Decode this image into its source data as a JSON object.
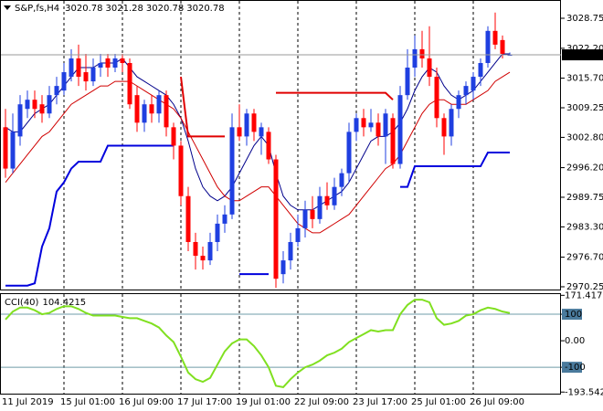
{
  "chart_data": {
    "type": "candlestick",
    "symbol": "S&P,fs,H4",
    "categories": [
      "11 Jul 2019",
      null,
      null,
      null,
      null,
      null,
      null,
      null,
      "15 Jul 01:00",
      null,
      null,
      null,
      null,
      null,
      null,
      null,
      "16 Jul 09:00",
      null,
      null,
      null,
      null,
      null,
      null,
      null,
      "17 Jul 17:00",
      null,
      null,
      null,
      null,
      null,
      null,
      null,
      "19 Jul 01:00",
      null,
      null,
      null,
      null,
      null,
      null,
      null,
      "22 Jul 09:00",
      null,
      null,
      null,
      null,
      null,
      null,
      null,
      "23 Jul 17:00",
      null,
      null,
      null,
      null,
      null,
      null,
      null,
      "25 Jul 01:00",
      null,
      null,
      null,
      null,
      null,
      null,
      null,
      "26 Jul 09:00",
      null,
      null,
      null,
      null,
      null
    ],
    "open": [
      3005,
      2996,
      3003,
      3009,
      3011,
      3010,
      3008,
      3012,
      3013,
      3016,
      3020,
      3017,
      3015,
      3018,
      3020,
      3018,
      3020,
      3019,
      3012,
      3006,
      3010,
      3008,
      3012,
      3005,
      3001,
      2990,
      2980,
      2977,
      2976,
      2980,
      2984,
      2986,
      3005,
      3003,
      3008,
      3003,
      3004,
      2998,
      2973,
      2976,
      2980,
      2983,
      2987,
      2985,
      2990,
      2988,
      2992,
      2995,
      3004,
      3007,
      3005,
      3006,
      3003,
      3007,
      2997,
      3012,
      3018,
      3022,
      3020,
      3016,
      3007,
      3003,
      3009,
      3012,
      3013,
      3016,
      3019,
      3026,
      3024,
      3020.78
    ],
    "high": [
      3009,
      3008,
      3012,
      3013,
      3013,
      3012,
      3014,
      3016,
      3019,
      3022,
      3023,
      3021,
      3020,
      3021,
      3021,
      3021,
      3021,
      3020,
      3014,
      3011,
      3012,
      3013,
      3013,
      3006,
      3002,
      2992,
      2982,
      2979,
      2982,
      2986,
      2988,
      3008,
      3010,
      3009,
      3009,
      3006,
      3005,
      2999,
      2978,
      2982,
      2986,
      2989,
      2990,
      2992,
      2993,
      2994,
      2996,
      3006,
      3008,
      3009,
      3009,
      3008,
      3009,
      3008,
      3014,
      3022,
      3025,
      3026,
      3027,
      3018,
      3008,
      3010,
      3013,
      3015,
      3017,
      3020,
      3027,
      3030,
      3025,
      3021.28
    ],
    "low": [
      2994,
      2995,
      3001,
      3007,
      3007,
      3006,
      3007,
      3010,
      3012,
      3015,
      3014,
      3013,
      3014,
      3016,
      3016,
      3017,
      3017,
      3009,
      3004,
      3004,
      3006,
      3006,
      3003,
      2998,
      2988,
      2978,
      2974,
      2974,
      2975,
      2978,
      2982,
      2985,
      3002,
      3001,
      3002,
      2999,
      2997,
      2970,
      2971,
      2974,
      2979,
      2981,
      2983,
      2984,
      2987,
      2987,
      2990,
      2993,
      3002,
      3003,
      3004,
      3001,
      2997,
      2996,
      2996,
      3011,
      3016,
      3018,
      3014,
      3005,
      2999,
      3001,
      3007,
      3010,
      3011,
      3014,
      3018,
      3022,
      3020,
      3020.78
    ],
    "close": [
      2996,
      3004,
      3010,
      3011,
      3009,
      3008,
      3012,
      3014,
      3017,
      3020,
      3016,
      3015,
      3018,
      3019,
      3018,
      3020,
      3019,
      3010,
      3006,
      3010,
      3008,
      3012,
      3005,
      3001,
      2990,
      2980,
      2977,
      2976,
      2980,
      2984,
      2986,
      3005,
      3003,
      3008,
      3004,
      3005,
      2998,
      2972,
      2976,
      2980,
      2983,
      2987,
      2985,
      2990,
      2988,
      2992,
      2995,
      3004,
      3007,
      3005,
      3006,
      3003,
      3008,
      2997,
      3012,
      3018,
      3022,
      3020,
      3016,
      3007,
      3003,
      3009,
      3012,
      3014,
      3016,
      3019,
      3026,
      3023,
      3021,
      3020.78
    ],
    "up_color": "#1f3fe0",
    "down_color": "#ff0000",
    "lines": [
      {
        "color": "#00008b",
        "width": 1,
        "values": [
          3005,
          3004,
          3004,
          3006,
          3008,
          3009,
          3010,
          3012,
          3014,
          3016,
          3018,
          3018,
          3018,
          3019,
          3019,
          3019,
          3020,
          3018,
          3016,
          3015,
          3014,
          3013,
          3012,
          3010,
          3007,
          3002,
          2996,
          2992,
          2990,
          2989,
          2990,
          2992,
          2995,
          2998,
          3001,
          3003,
          3001,
          2995,
          2990,
          2988,
          2987,
          2987,
          2987,
          2988,
          2989,
          2990,
          2991,
          2993,
          2996,
          2999,
          3002,
          3003,
          3003,
          3004,
          3006,
          3009,
          3013,
          3016,
          3018,
          3017,
          3014,
          3012,
          3011,
          3012,
          3013,
          3015,
          3017,
          3019,
          3021,
          3021
        ]
      },
      {
        "color": "#d00000",
        "width": 1,
        "values": [
          2993,
          2995,
          2997,
          2999,
          3001,
          3003,
          3004,
          3006,
          3008,
          3010,
          3011,
          3012,
          3013,
          3014,
          3014,
          3015,
          3015,
          3015,
          3014,
          3013,
          3012,
          3011,
          3010,
          3009,
          3007,
          3004,
          3001,
          2998,
          2995,
          2992,
          2990,
          2989,
          2989,
          2990,
          2991,
          2992,
          2992,
          2990,
          2988,
          2986,
          2984,
          2983,
          2982,
          2982,
          2983,
          2984,
          2985,
          2986,
          2988,
          2990,
          2992,
          2994,
          2996,
          2997,
          2999,
          3002,
          3005,
          3008,
          3010,
          3011,
          3011,
          3010,
          3010,
          3010,
          3011,
          3012,
          3013,
          3015,
          3016,
          3017
        ]
      },
      {
        "color": "#0000dd",
        "width": 2,
        "values": [
          2970.5,
          2970.5,
          2970.5,
          2970.5,
          2971,
          2979,
          2983,
          2991,
          2993,
          2996,
          2997.5,
          2997.5,
          2997.5,
          2997.5,
          3001,
          3001,
          3001,
          3001,
          3001,
          3001,
          3001,
          3001,
          3001,
          3001,
          null,
          null,
          null,
          null,
          null,
          null,
          null,
          null,
          2973,
          2973,
          2973,
          2973,
          2973,
          null,
          null,
          null,
          null,
          null,
          null,
          null,
          null,
          null,
          null,
          null,
          null,
          null,
          null,
          null,
          null,
          null,
          2992,
          2992,
          2996.5,
          2996.5,
          2996.5,
          2996.5,
          2996.5,
          2996.5,
          2996.5,
          2996.5,
          2996.5,
          2996.5,
          2999.5,
          2999.5,
          2999.5,
          2999.5
        ]
      },
      {
        "color": "#e00000",
        "width": 2,
        "values": [
          null,
          null,
          null,
          null,
          null,
          null,
          null,
          null,
          null,
          null,
          null,
          null,
          null,
          null,
          null,
          null,
          null,
          null,
          null,
          null,
          null,
          null,
          null,
          null,
          3016,
          3003,
          3003,
          3003,
          3003,
          3003,
          3003,
          null,
          null,
          null,
          null,
          null,
          null,
          3012.5,
          3012.5,
          3012.5,
          3012.5,
          3012.5,
          3012.5,
          3012.5,
          3012.5,
          3012.5,
          3012.5,
          3012.5,
          3012.5,
          3012.5,
          3012.5,
          3012.5,
          3012.5,
          3011,
          null,
          null,
          null,
          null,
          null,
          null,
          null,
          null,
          null,
          null,
          null,
          null,
          null,
          null,
          null,
          null
        ]
      }
    ],
    "ylim": [
      2969.45,
      3032.33
    ],
    "yticks": [
      3028.75,
      {
        "value": 3022.2,
        "label": "3022.20"
      },
      {
        "value": 3015.7,
        "label": "3015.70"
      },
      3009.25,
      {
        "value": 3002.8,
        "label": "3002.80"
      },
      {
        "value": 2996.2,
        "label": "2996.20"
      },
      2989.75,
      {
        "value": 2983.3,
        "label": "2983.30"
      },
      {
        "value": 2976.7,
        "label": "2976.70"
      },
      2970.25
    ],
    "grid": true,
    "indicator": {
      "name": "CCI(40)",
      "color": "#80e020",
      "values": [
        80,
        110,
        125,
        125,
        115,
        100,
        105,
        120,
        130,
        130,
        120,
        105,
        95,
        95,
        95,
        95,
        90,
        85,
        85,
        75,
        65,
        50,
        20,
        -5,
        -60,
        -120,
        -145,
        -155,
        -140,
        -90,
        -40,
        -10,
        5,
        5,
        -20,
        -55,
        -100,
        -170,
        -175,
        -145,
        -120,
        -100,
        -90,
        -75,
        -55,
        -45,
        -30,
        -5,
        10,
        25,
        40,
        35,
        40,
        40,
        100,
        135,
        155,
        155,
        145,
        85,
        60,
        65,
        75,
        95,
        100,
        115,
        125,
        120,
        110,
        104.4215
      ],
      "ylim": [
        -203,
        176
      ],
      "yticks": [
        171.4179,
        100,
        {
          "value": 0,
          "label": "0.00"
        },
        -100,
        -193.5429
      ],
      "levels": [
        100,
        -100
      ]
    }
  }
}
